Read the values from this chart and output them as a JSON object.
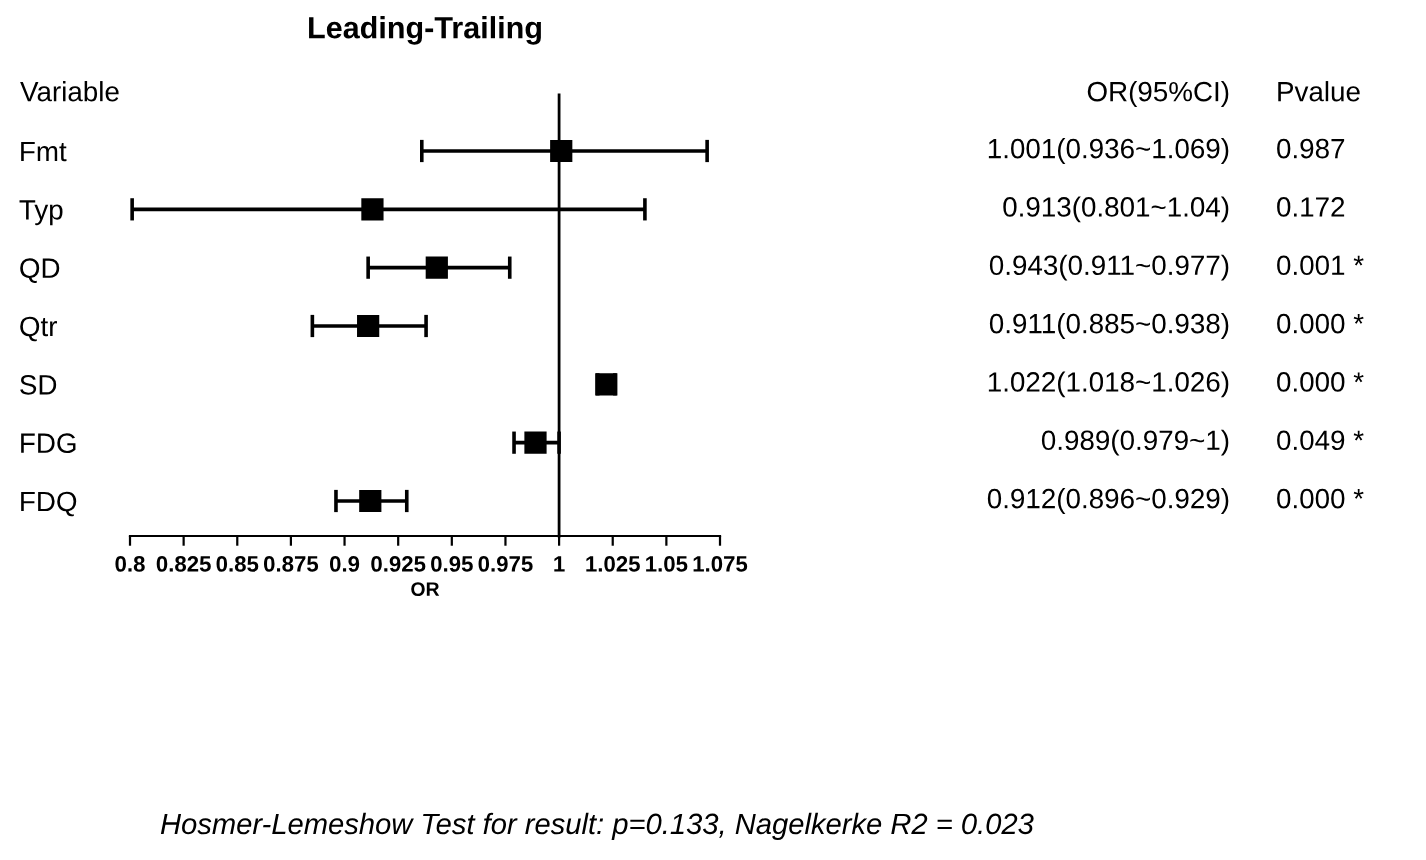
{
  "chart_data": {
    "type": "scatter",
    "orientation": "horizontal",
    "title": "Leading-Trailing",
    "xlabel": "OR",
    "ylabel": "Variable",
    "categories": [
      "Fmt",
      "Typ",
      "QD",
      "Qtr",
      "SD",
      "FDG",
      "FDQ"
    ],
    "values": [
      1.001,
      0.913,
      0.943,
      0.911,
      1.022,
      0.989,
      0.912
    ],
    "errors": [
      [
        0.936,
        1.069
      ],
      [
        0.801,
        1.04
      ],
      [
        0.911,
        0.977
      ],
      [
        0.885,
        0.938
      ],
      [
        1.018,
        1.026
      ],
      [
        0.979,
        1
      ],
      [
        0.896,
        0.929
      ]
    ],
    "value_labels": [
      "1.001(0.936~1.069)",
      "0.913(0.801~1.04)",
      "0.943(0.911~0.977)",
      "0.911(0.885~0.938)",
      "1.022(1.018~1.026)",
      "0.989(0.979~1)",
      "0.912(0.896~0.929)"
    ],
    "color": "#000000",
    "marker": "square",
    "xlim": [
      0.8,
      1.075
    ],
    "xticks": [
      0.8,
      0.825,
      0.85,
      0.875,
      0.9,
      0.925,
      0.95,
      0.975,
      1,
      1.025,
      1.05,
      1.075
    ],
    "ref_lines": [
      {
        "axis": "x",
        "value": 1
      }
    ],
    "grid": false,
    "tick_labels": "x",
    "annotations": [
      "OR(95%CI)",
      "Pvalue",
      "0.987",
      "0.172",
      "0.001 *",
      "0.000 *",
      "0.000 *",
      "0.049 *",
      "0.000 *",
      "Hosmer-Lemeshow Test for result: p=0.133, Nagelkerke R2 = 0.023"
    ]
  }
}
